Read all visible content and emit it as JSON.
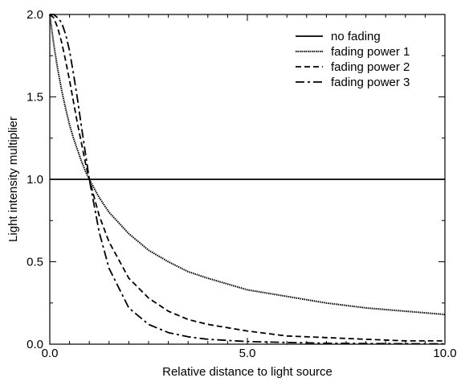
{
  "chart_data": {
    "type": "line",
    "title": "",
    "xlabel": "Relative distance to light source",
    "ylabel": "Light intensity multiplier",
    "xlim": [
      0,
      10
    ],
    "ylim": [
      0,
      2
    ],
    "grid": false,
    "legend_position": "top-right",
    "x_ticks": [
      {
        "value": 0,
        "label": "0.0"
      },
      {
        "value": 5,
        "label": "5.0"
      },
      {
        "value": 10,
        "label": "10.0"
      }
    ],
    "y_ticks": [
      {
        "value": 0,
        "label": "0.0"
      },
      {
        "value": 0.5,
        "label": "0.5"
      },
      {
        "value": 1,
        "label": "1.0"
      },
      {
        "value": 1.5,
        "label": "1.5"
      },
      {
        "value": 2,
        "label": "2.0"
      }
    ],
    "series": [
      {
        "name": "no fading",
        "dash": "solid",
        "x": [
          0,
          10
        ],
        "y": [
          1.0,
          1.0
        ]
      },
      {
        "name": "fading power 1",
        "dash": "dotted",
        "x": [
          0,
          0.1,
          0.2,
          0.3,
          0.4,
          0.5,
          0.6,
          0.7,
          0.8,
          0.9,
          1.0,
          1.25,
          1.5,
          2.0,
          2.5,
          3.0,
          3.5,
          4.0,
          5.0,
          6.0,
          7.0,
          8.0,
          9.0,
          10.0
        ],
        "y": [
          2.0,
          1.82,
          1.67,
          1.54,
          1.43,
          1.33,
          1.25,
          1.18,
          1.11,
          1.05,
          1.0,
          0.89,
          0.8,
          0.67,
          0.57,
          0.5,
          0.44,
          0.4,
          0.33,
          0.29,
          0.25,
          0.22,
          0.2,
          0.18
        ]
      },
      {
        "name": "fading power 2",
        "dash": "dashed",
        "x": [
          0,
          0.1,
          0.2,
          0.3,
          0.4,
          0.5,
          0.6,
          0.7,
          0.8,
          0.9,
          1.0,
          1.25,
          1.5,
          2.0,
          2.5,
          3.0,
          3.5,
          4.0,
          5.0,
          6.0,
          7.0,
          8.0,
          9.0,
          10.0
        ],
        "y": [
          2.0,
          1.98,
          1.92,
          1.83,
          1.72,
          1.6,
          1.47,
          1.34,
          1.22,
          1.1,
          1.0,
          0.78,
          0.62,
          0.4,
          0.28,
          0.2,
          0.15,
          0.12,
          0.08,
          0.05,
          0.04,
          0.03,
          0.02,
          0.02
        ]
      },
      {
        "name": "fading power 3",
        "dash": "dashdot",
        "x": [
          0,
          0.1,
          0.2,
          0.3,
          0.4,
          0.5,
          0.6,
          0.7,
          0.8,
          0.9,
          1.0,
          1.25,
          1.5,
          2.0,
          2.5,
          3.0,
          3.5,
          4.0,
          5.0,
          6.0,
          7.0,
          8.0,
          9.0,
          10.0
        ],
        "y": [
          2.0,
          2.0,
          1.98,
          1.95,
          1.88,
          1.78,
          1.64,
          1.49,
          1.32,
          1.16,
          1.0,
          0.68,
          0.46,
          0.22,
          0.12,
          0.07,
          0.045,
          0.03,
          0.016,
          0.01,
          0.006,
          0.004,
          0.003,
          0.002
        ]
      }
    ]
  }
}
